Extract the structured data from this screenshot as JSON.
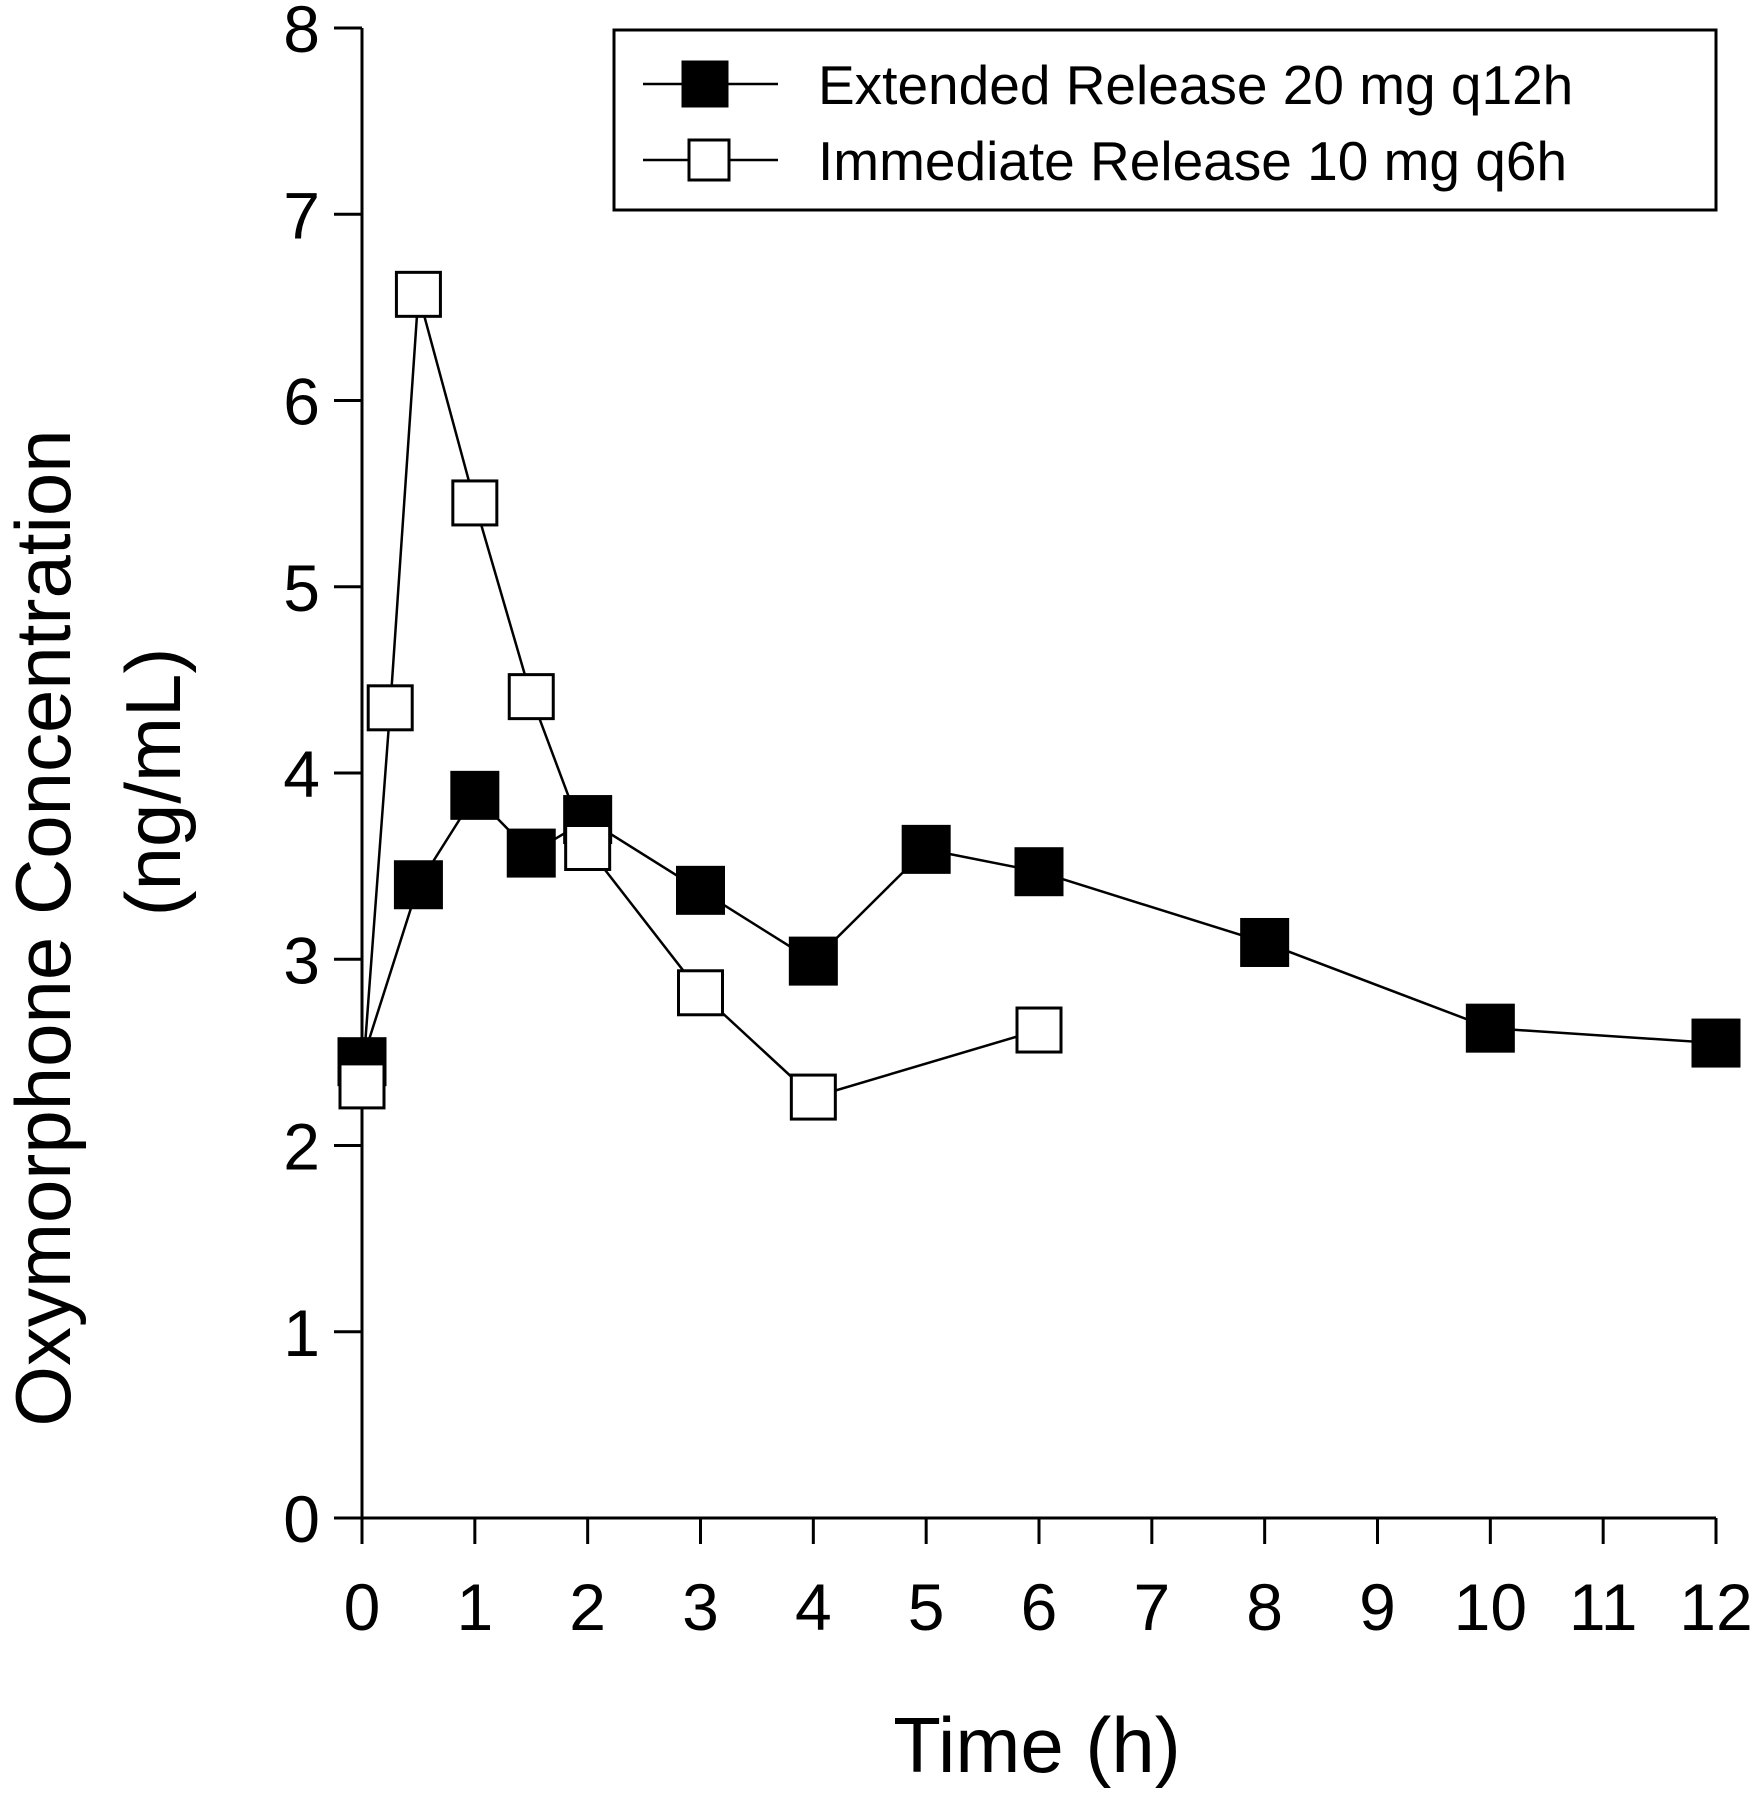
{
  "chart_data": {
    "type": "line",
    "title": "",
    "xlabel": "Time (h)",
    "ylabel_line1": "Oxymorphone Concentration",
    "ylabel_line2": "(ng/mL)",
    "xlim": [
      0,
      12
    ],
    "ylim": [
      0,
      8
    ],
    "xticks": [
      0,
      1,
      2,
      3,
      4,
      5,
      6,
      7,
      8,
      9,
      10,
      11,
      12
    ],
    "yticks": [
      0,
      1,
      2,
      3,
      4,
      5,
      6,
      7,
      8
    ],
    "grid": false,
    "legend_position": "top-right",
    "series": [
      {
        "name": "Extended Release 20 mg q12h",
        "marker": "filled-square",
        "color": "#000000",
        "x": [
          0,
          0.5,
          1,
          1.5,
          2,
          3,
          4,
          5,
          6,
          8,
          10,
          12
        ],
        "y": [
          2.45,
          3.4,
          3.88,
          3.57,
          3.75,
          3.37,
          2.99,
          3.59,
          3.47,
          3.09,
          2.63,
          2.55
        ]
      },
      {
        "name": "Immediate Release 10 mg q6h",
        "marker": "open-square",
        "color": "#000000",
        "x": [
          0,
          0.25,
          0.5,
          1,
          1.5,
          2,
          3,
          4,
          6
        ],
        "y": [
          2.32,
          4.35,
          6.57,
          5.45,
          4.41,
          3.6,
          2.82,
          2.26,
          2.62
        ]
      }
    ]
  }
}
